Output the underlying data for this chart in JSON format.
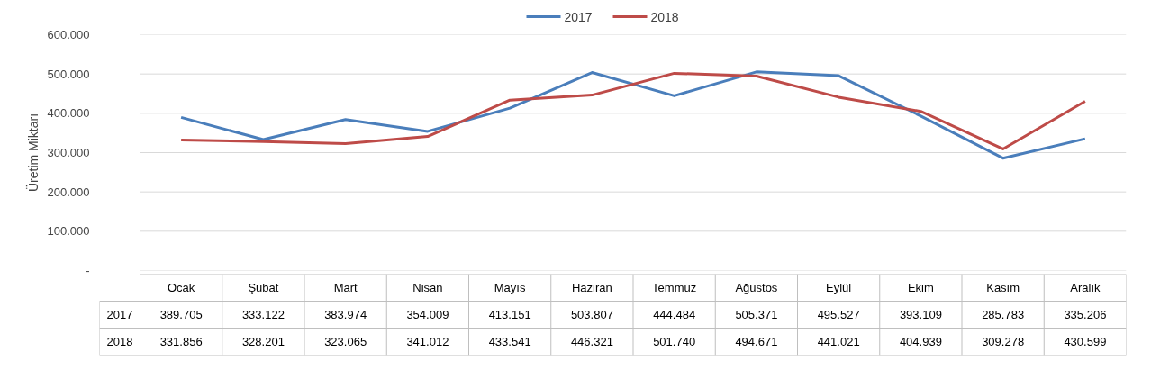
{
  "chart_data": {
    "type": "line",
    "ylabel": "Üretim Miktarı",
    "categories": [
      "Ocak",
      "Şubat",
      "Mart",
      "Nisan",
      "Mayıs",
      "Haziran",
      "Temmuz",
      "Ağustos",
      "Eylül",
      "Ekim",
      "Kasım",
      "Aralık"
    ],
    "series": [
      {
        "name": "2017",
        "color": "#4a7ebb",
        "values": [
          389705,
          333122,
          383974,
          354009,
          413151,
          503807,
          444484,
          505371,
          495527,
          393109,
          285783,
          335206
        ],
        "value_labels": [
          "389.705",
          "333.122",
          "383.974",
          "354.009",
          "413.151",
          "503.807",
          "444.484",
          "505.371",
          "495.527",
          "393.109",
          "285.783",
          "335.206"
        ]
      },
      {
        "name": "2018",
        "color": "#be4b48",
        "values": [
          331856,
          328201,
          323065,
          341012,
          433541,
          446321,
          501740,
          494671,
          441021,
          404939,
          309278,
          430599
        ],
        "value_labels": [
          "331.856",
          "328.201",
          "323.065",
          "341.012",
          "433.541",
          "446.321",
          "501.740",
          "494.671",
          "441.021",
          "404.939",
          "309.278",
          "430.599"
        ]
      }
    ],
    "ylim": [
      0,
      600000
    ],
    "yticks": [
      {
        "value": 0,
        "label": "-"
      },
      {
        "value": 100000,
        "label": "100.000"
      },
      {
        "value": 200000,
        "label": "200.000"
      },
      {
        "value": 300000,
        "label": "300.000"
      },
      {
        "value": 400000,
        "label": "400.000"
      },
      {
        "value": 500000,
        "label": "500.000"
      },
      {
        "value": 600000,
        "label": "600.000"
      }
    ],
    "grid": "y",
    "legend": "top",
    "marker": "none",
    "line_style": "solid"
  }
}
